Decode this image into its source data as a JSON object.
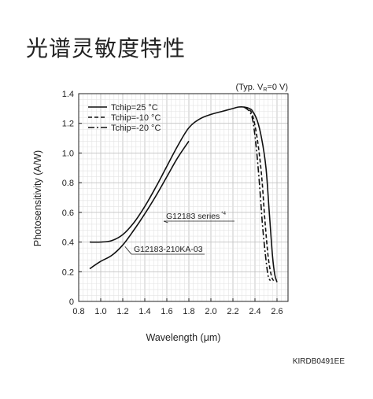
{
  "page_title": "光谱灵敏度特性",
  "doc_code": "KIRDB0491EE",
  "chart_data": {
    "type": "line",
    "title": "",
    "condition_note": "(Typ. V",
    "condition_sub": "R",
    "condition_rest": "=0 V)",
    "xlabel": "Wavelength (μm)",
    "ylabel": "Photosensitivity (A/W)",
    "xlim": [
      0.8,
      2.7
    ],
    "ylim": [
      0,
      1.4
    ],
    "x_ticks": [
      0.8,
      1.0,
      1.2,
      1.4,
      1.6,
      1.8,
      2.0,
      2.2,
      2.4,
      2.6
    ],
    "x_tick_labels": [
      "0.8",
      "1.0",
      "1.2",
      "1.4",
      "1.6",
      "1.8",
      "2.0",
      "2.2",
      "2.4",
      "2.6"
    ],
    "y_ticks": [
      0,
      0.2,
      0.4,
      0.6,
      0.8,
      1.0,
      1.2,
      1.4
    ],
    "y_tick_labels": [
      "0",
      "0.2",
      "0.4",
      "0.6",
      "0.8",
      "1.0",
      "1.2",
      "1.4"
    ],
    "grid": true,
    "legend_position": "top-left",
    "legend": [
      {
        "label": "Tchip=25 °C",
        "style": "solid"
      },
      {
        "label": "Tchip=-10 °C",
        "style": "dashed"
      },
      {
        "label": "Tchip=-20 °C",
        "style": "dashdot"
      }
    ],
    "annotations": [
      {
        "text": "G12183 series",
        "sup": "*4",
        "x": 1.61,
        "y": 0.53
      },
      {
        "text": "G12183-210KA-03",
        "x": 1.22,
        "y": 0.37
      }
    ],
    "series": [
      {
        "name": "G12183 series",
        "style": "solid",
        "x": [
          0.9,
          1.0,
          1.1,
          1.2,
          1.3,
          1.4,
          1.5,
          1.6,
          1.7,
          1.8,
          1.9,
          2.0,
          2.1,
          2.2,
          2.25,
          2.3,
          2.35,
          2.38,
          2.42,
          2.46,
          2.5,
          2.53,
          2.56,
          2.58,
          2.6
        ],
        "y": [
          0.4,
          0.4,
          0.41,
          0.45,
          0.53,
          0.64,
          0.77,
          0.91,
          1.05,
          1.17,
          1.23,
          1.26,
          1.28,
          1.3,
          1.31,
          1.31,
          1.3,
          1.28,
          1.22,
          1.1,
          0.9,
          0.6,
          0.3,
          0.18,
          0.13
        ]
      },
      {
        "name": "G12183-210KA-03",
        "style": "solid",
        "x": [
          0.9,
          1.0,
          1.1,
          1.2,
          1.3,
          1.4,
          1.5,
          1.6,
          1.7,
          1.8
        ],
        "y": [
          0.22,
          0.27,
          0.31,
          0.38,
          0.48,
          0.59,
          0.71,
          0.84,
          0.97,
          1.08
        ]
      },
      {
        "name": "Tchip=-10 °C",
        "style": "dashed",
        "x": [
          2.3,
          2.35,
          2.38,
          2.42,
          2.46,
          2.49,
          2.52,
          2.55,
          2.57
        ],
        "y": [
          1.31,
          1.29,
          1.25,
          1.1,
          0.85,
          0.55,
          0.3,
          0.17,
          0.14
        ]
      },
      {
        "name": "Tchip=-20 °C",
        "style": "dashdot",
        "x": [
          2.3,
          2.35,
          2.38,
          2.41,
          2.44,
          2.47,
          2.5,
          2.52,
          2.54
        ],
        "y": [
          1.31,
          1.28,
          1.22,
          1.05,
          0.8,
          0.5,
          0.28,
          0.17,
          0.14
        ]
      }
    ]
  }
}
